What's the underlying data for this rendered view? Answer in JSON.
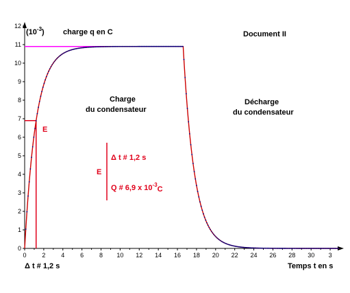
{
  "chart_data": {
    "type": "scatter",
    "title": "Document II",
    "ylabel_prefix": "(10",
    "ylabel_exp": "-3",
    "ylabel_suffix": ")",
    "ylabel": "charge q en C",
    "xlabel": "Temps t en s",
    "xlim": [
      0,
      33
    ],
    "ylim": [
      0,
      12
    ],
    "x_ticks": [
      "0",
      "2",
      "4",
      "6",
      "8",
      "10",
      "12",
      "14",
      "16",
      "18",
      "20",
      "22",
      "24",
      "26",
      "28",
      "30",
      "3"
    ],
    "y_ticks": [
      "0",
      "1",
      "2",
      "3",
      "4",
      "5",
      "6",
      "7",
      "8",
      "9",
      "10",
      "11",
      "12"
    ],
    "grid": false,
    "model": {
      "Q_max": 10.9,
      "tau_charge": 1.2,
      "discharge_start": 16.6,
      "tau_discharge": 1.2,
      "x_end": 33
    },
    "series": [
      {
        "color": "#000080",
        "values_desc": "mesures q(t)"
      },
      {
        "color": "#cc0000",
        "values_desc": "modèle q(t)"
      }
    ],
    "asymptote": {
      "value": 10.9,
      "x_start": 0,
      "x_end": 16.6,
      "color": "#ff00ff"
    },
    "annotations": {
      "charge_label_1": "Charge",
      "charge_label_2": "du condensateur",
      "decharge_label_1": "Décharge",
      "decharge_label_2": "du condensateur",
      "E_mark": "E",
      "E_brace": "E",
      "dt_text": "Δ t # 1,2 s",
      "q_text_prefix": "Q  # 6,9 x 10",
      "q_text_exp": "-3",
      "q_text_unit": "C",
      "dt_axis_label": "Δ t # 1,2 s",
      "tangent_time": 1.2,
      "tangent_value": 6.9
    }
  }
}
